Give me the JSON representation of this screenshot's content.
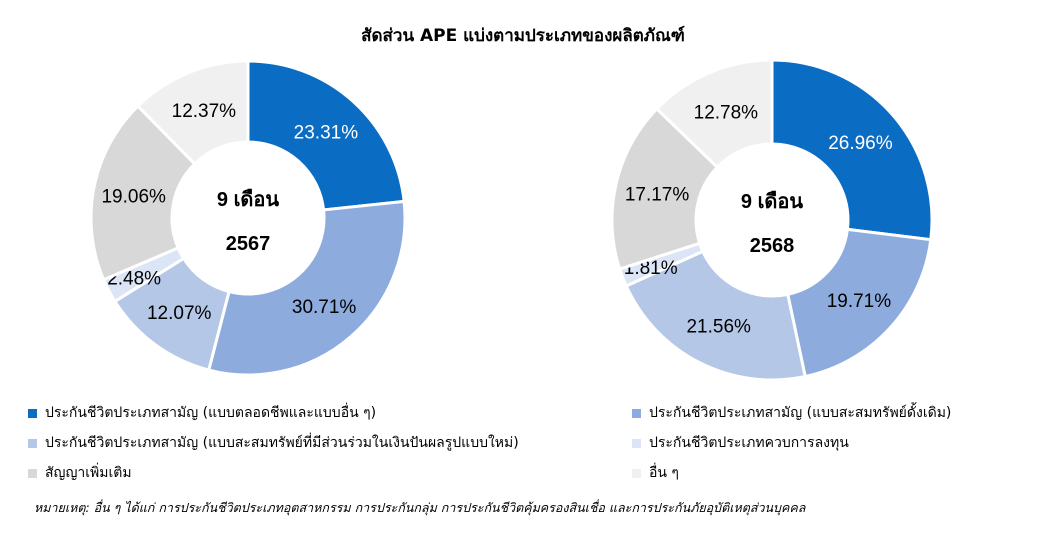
{
  "title": "สัดส่วน APE แบ่งตามประเภทของผลิตภัณฑ์",
  "categories": [
    "ประกันชีวิตประเภทสามัญ (แบบตลอดชีพและแบบอื่น ๆ)",
    "ประกันชีวิตประเภทสามัญ (แบบสะสมทรัพย์ดั้งเดิม)",
    "ประกันชีวิตประเภทสามัญ (แบบสะสมทรัพย์ที่มีส่วนร่วมในเงินปันผลรูปแบบใหม่)",
    "ประกันชีวิตประเภทควบการลงทุน",
    "สัญญาเพิ่มเติม",
    "อื่น ๆ"
  ],
  "colors": [
    "#0a6cc3",
    "#8eabdd",
    "#b4c7e7",
    "#dbe5f5",
    "#d8d8d8",
    "#f0f0f0"
  ],
  "chart_data": [
    {
      "type": "pie",
      "center_line1": "9 เดือน",
      "center_line2": "2567",
      "values": [
        23.31,
        30.71,
        12.07,
        2.48,
        19.06,
        12.37
      ],
      "labels": [
        "23.31%",
        "30.71%",
        "12.07%",
        "2.48%",
        "19.06%",
        "12.37%"
      ]
    },
    {
      "type": "pie",
      "center_line1": "9 เดือน",
      "center_line2": "2568",
      "values": [
        26.96,
        19.71,
        21.56,
        1.81,
        17.17,
        12.78
      ],
      "labels": [
        "26.96%",
        "19.71%",
        "21.56%",
        "1.81%",
        "17.17%",
        "12.78%"
      ]
    }
  ],
  "note": "หมายเหตุ: อื่น ๆ ได้แก่ การประกันชีวิตประเภทอุตสาหกรรม การประกันกลุ่ม การประกันชีวิตคุ้มครองสินเชื่อ และการประกันภัยอุบัติเหตุส่วนบุคคล"
}
